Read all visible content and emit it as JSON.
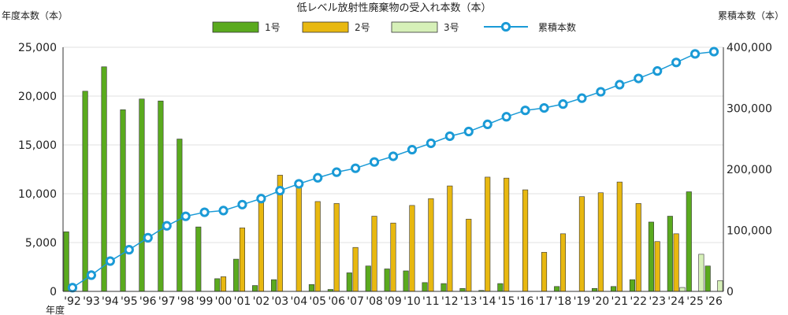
{
  "chart_data": {
    "type": "bar+line",
    "title": "低レベル放射性廃棄物の受入れ本数（本）",
    "ylabel_left": "年度本数（本）",
    "ylabel_right": "累積本数（本）",
    "xlabel": "年度",
    "ylim_left": [
      0,
      25000
    ],
    "ylim_right": [
      0,
      400000
    ],
    "yticks_left": [
      "0",
      "5,000",
      "10,000",
      "15,000",
      "20,000",
      "25,000"
    ],
    "yticks_right": [
      "0",
      "100,000",
      "200,000",
      "300,000",
      "400,000"
    ],
    "grid": true,
    "legend_position": "top",
    "categories": [
      "'92",
      "'93",
      "'94",
      "'95",
      "'96",
      "'97",
      "'98",
      "'99",
      "'00",
      "'01",
      "'02",
      "'03",
      "'04",
      "'05",
      "'06",
      "'07",
      "'08",
      "'09",
      "'10",
      "'11",
      "'12",
      "'13",
      "'14",
      "'15",
      "'16",
      "'17",
      "'18",
      "'19",
      "'20",
      "'21",
      "'22",
      "'23",
      "'24",
      "'25",
      "'26"
    ],
    "series": [
      {
        "name": "1号",
        "kind": "bar",
        "axis": "left",
        "color": "#5aaa1e",
        "values": [
          6100,
          20500,
          23000,
          18600,
          19700,
          19500,
          15600,
          6600,
          1300,
          3300,
          600,
          1200,
          0,
          700,
          200,
          1900,
          2600,
          2300,
          2100,
          900,
          800,
          300,
          100,
          800,
          0,
          0,
          500,
          0,
          300,
          500,
          1200,
          7100,
          7700,
          10200,
          2600
        ]
      },
      {
        "name": "2号",
        "kind": "bar",
        "axis": "left",
        "color": "#e8b810",
        "values": [
          0,
          0,
          0,
          0,
          0,
          0,
          0,
          0,
          1500,
          6500,
          9200,
          11900,
          11100,
          9200,
          9000,
          4500,
          7700,
          7000,
          8800,
          9500,
          10800,
          7400,
          11700,
          11600,
          10400,
          4000,
          5900,
          9700,
          10100,
          11200,
          9000,
          5100,
          5900,
          0,
          0
        ]
      },
      {
        "name": "3号",
        "kind": "bar",
        "axis": "left",
        "color": "#d6f0b8",
        "values": [
          0,
          0,
          0,
          0,
          0,
          0,
          0,
          0,
          0,
          0,
          0,
          0,
          0,
          0,
          0,
          0,
          0,
          0,
          0,
          0,
          0,
          0,
          0,
          0,
          0,
          0,
          0,
          0,
          0,
          0,
          0,
          0,
          400,
          3800,
          1100
        ]
      },
      {
        "name": "累積本数",
        "kind": "line",
        "axis": "right",
        "color": "#1a9ad6",
        "values": [
          6100,
          26600,
          49600,
          68200,
          87900,
          107400,
          123000,
          129600,
          132400,
          142200,
          152000,
          165100,
          176200,
          186100,
          195300,
          201700,
          212000,
          221300,
          232200,
          242600,
          254200,
          261900,
          273700,
          286100,
          296500,
          300500,
          306900,
          316600,
          327000,
          338700,
          348900,
          361100,
          375100,
          389100,
          392800
        ]
      }
    ]
  }
}
